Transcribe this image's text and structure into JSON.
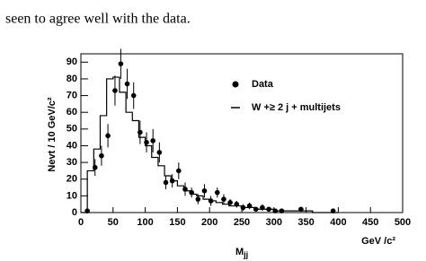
{
  "text": "seen to agree well with the data.",
  "chart_data": {
    "type": "histogram",
    "y_label": "Nevt / 10 GeV/c²",
    "x_label": "GeV /c²",
    "x_symbol": "M",
    "x_symbol_sub": "jj",
    "xlim": [
      0,
      500
    ],
    "xticks": [
      0,
      50,
      100,
      150,
      200,
      250,
      300,
      350,
      400,
      450,
      500
    ],
    "ylim": [
      0,
      95
    ],
    "yticks": [
      0,
      10,
      20,
      30,
      40,
      50,
      60,
      70,
      80,
      90
    ],
    "legend_position": "upper right",
    "bins": [
      0,
      10,
      20,
      30,
      40,
      50,
      60,
      70,
      80,
      90,
      100,
      110,
      120,
      130,
      140,
      150,
      160,
      170,
      180,
      190,
      200,
      210,
      220,
      230,
      240,
      250,
      260,
      270,
      280,
      290,
      300,
      310,
      320,
      330,
      340,
      350,
      360,
      370,
      380,
      390,
      400
    ],
    "series": [
      {
        "name": "Data",
        "kind": "points",
        "color": "#000000",
        "x": [
          10,
          22,
          32,
          42,
          53,
          62,
          72,
          82,
          92,
          102,
          112,
          122,
          132,
          142,
          152,
          162,
          172,
          182,
          192,
          202,
          212,
          222,
          232,
          242,
          252,
          262,
          272,
          282,
          292,
          302,
          312,
          342,
          392
        ],
        "values": [
          1,
          27,
          34,
          46,
          73,
          89,
          77,
          70,
          48,
          42,
          43,
          36,
          18,
          19,
          25,
          14,
          12,
          8,
          13,
          7,
          12,
          8,
          6,
          5,
          3,
          4,
          2,
          3,
          2,
          1,
          1,
          2,
          1
        ],
        "errors": [
          1,
          5,
          6,
          7,
          9,
          9,
          9,
          8,
          7,
          6,
          7,
          6,
          4,
          4,
          5,
          4,
          3,
          3,
          4,
          3,
          3,
          3,
          2,
          2,
          2,
          2,
          1,
          2,
          1,
          1,
          1,
          1,
          1
        ]
      },
      {
        "name": "W +≥ 2 j + multijets",
        "kind": "histogram",
        "color": "#000000",
        "values": [
          0,
          25,
          38,
          58,
          80,
          81,
          72,
          60,
          55,
          45,
          40,
          33,
          28,
          22,
          19,
          16,
          13,
          11,
          10,
          8,
          7,
          6,
          5,
          4,
          4,
          3,
          3,
          2,
          2,
          2,
          1,
          1,
          1,
          1,
          1,
          1,
          0,
          0,
          0,
          0
        ]
      }
    ]
  }
}
